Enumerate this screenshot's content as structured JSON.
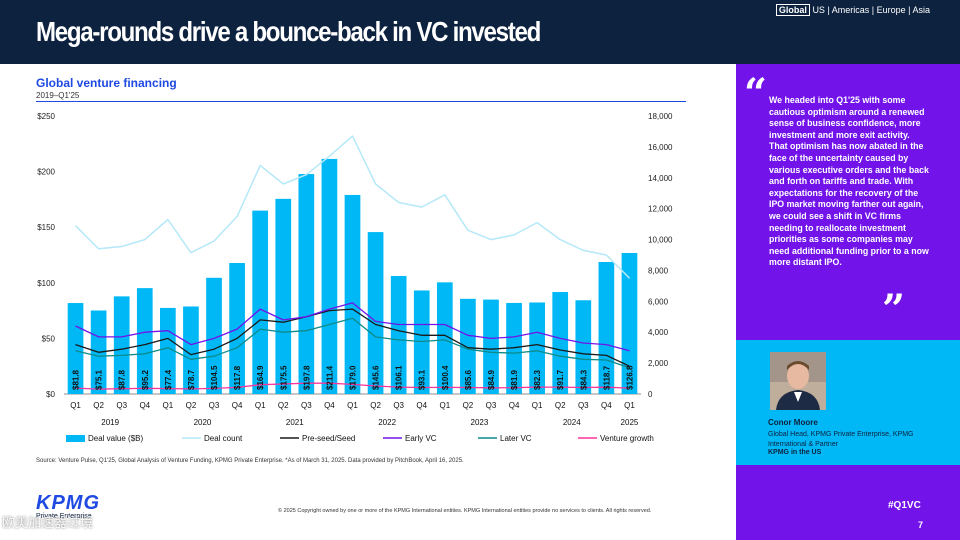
{
  "header": {
    "title": "Mega-rounds drive a bounce-back in VC invested",
    "region_active": "Global",
    "region_rest": "US | Americas | Europe | Asia"
  },
  "chart_header": {
    "title": "Global venture financing",
    "subtitle": "2019–Q1'25"
  },
  "chart_data": {
    "type": "bar",
    "title": "Global venture financing",
    "subtitle": "2019–Q1'25",
    "categories": [
      "Q1",
      "Q2",
      "Q3",
      "Q4",
      "Q1",
      "Q2",
      "Q3",
      "Q4",
      "Q1",
      "Q2",
      "Q3",
      "Q4",
      "Q1",
      "Q2",
      "Q3",
      "Q4",
      "Q1",
      "Q2",
      "Q3",
      "Q4",
      "Q1",
      "Q2",
      "Q3",
      "Q4",
      "Q1"
    ],
    "years": [
      {
        "label": "2019",
        "start": 0,
        "end": 3
      },
      {
        "label": "2020",
        "start": 4,
        "end": 7
      },
      {
        "label": "2021",
        "start": 8,
        "end": 11
      },
      {
        "label": "2022",
        "start": 12,
        "end": 15
      },
      {
        "label": "2023",
        "start": 16,
        "end": 19
      },
      {
        "label": "2024",
        "start": 20,
        "end": 23
      },
      {
        "label": "2025",
        "start": 24,
        "end": 24
      }
    ],
    "bars": {
      "name": "Deal value ($B)",
      "color": "#00b8f5",
      "values": [
        81.8,
        75.1,
        87.8,
        95.2,
        77.4,
        78.7,
        104.5,
        117.8,
        164.9,
        175.5,
        197.8,
        211.4,
        179.0,
        145.6,
        106.1,
        93.1,
        100.4,
        85.6,
        84.9,
        81.9,
        82.3,
        91.7,
        84.3,
        118.7,
        126.8
      ],
      "labels": [
        "$81.8",
        "$75.1",
        "$87.8",
        "$95.2",
        "$77.4",
        "$78.7",
        "$104.5",
        "$117.8",
        "$164.9",
        "$175.5",
        "$197.8",
        "$211.4",
        "$179.0",
        "$145.6",
        "$106.1",
        "$93.1",
        "$100.4",
        "$85.6",
        "$84.9",
        "$81.9",
        "$82.3",
        "$91.7",
        "$84.3",
        "$118.7",
        "$126.8"
      ]
    },
    "left_axis": {
      "min": 0,
      "max": 250,
      "step": 50,
      "ticks": [
        "$0",
        "$50",
        "$100",
        "$150",
        "$200",
        "$250"
      ]
    },
    "right_axis": {
      "min": 0,
      "max": 18000,
      "step": 2000,
      "ticks": [
        "0",
        "2,000",
        "4,000",
        "6,000",
        "8,000",
        "10,000",
        "12,000",
        "14,000",
        "16,000",
        "18,000"
      ]
    },
    "lines": [
      {
        "name": "Deal count",
        "color": "#b5e8f8",
        "width": 1.5,
        "values": [
          10900,
          9400,
          9550,
          10000,
          11300,
          9150,
          9900,
          11500,
          14800,
          13600,
          14200,
          15400,
          16700,
          13600,
          12400,
          12100,
          12900,
          10600,
          10000,
          10300,
          11100,
          10000,
          9300,
          9000,
          7500
        ]
      },
      {
        "name": "Pre-seed/Seed",
        "color": "#1a1a1a",
        "width": 1.3,
        "values": [
          3200,
          2700,
          2900,
          3200,
          3600,
          2550,
          2900,
          3600,
          4800,
          4650,
          5000,
          5400,
          5500,
          4500,
          4100,
          3800,
          3800,
          3000,
          2900,
          3000,
          3200,
          2850,
          2600,
          2500,
          1800
        ]
      },
      {
        "name": "Early VC",
        "color": "#7213ea",
        "width": 1.3,
        "values": [
          4400,
          3700,
          3700,
          4000,
          4100,
          3200,
          3600,
          4200,
          5500,
          4800,
          5000,
          5500,
          5900,
          4700,
          4500,
          4500,
          4500,
          3800,
          3600,
          3700,
          4000,
          3600,
          3300,
          3200,
          2800
        ]
      },
      {
        "name": "Later VC",
        "color": "#0d8a8a",
        "width": 1.3,
        "values": [
          2800,
          2450,
          2500,
          2600,
          3000,
          2250,
          2450,
          3000,
          4200,
          4000,
          4100,
          4500,
          4900,
          3700,
          3500,
          3400,
          3500,
          2900,
          2700,
          2650,
          2800,
          2450,
          2250,
          2200,
          1700
        ]
      },
      {
        "name": "Venture growth",
        "color": "#fd349c",
        "width": 1.3,
        "values": [
          380,
          320,
          340,
          370,
          350,
          330,
          360,
          430,
          600,
          650,
          700,
          700,
          620,
          520,
          450,
          420,
          430,
          420,
          400,
          410,
          450,
          450,
          420,
          440,
          380
        ]
      }
    ],
    "legend": [
      {
        "name": "Deal value ($B)",
        "kind": "bar",
        "color": "#00b8f5"
      },
      {
        "name": "Deal count",
        "kind": "line",
        "color": "#b5e8f8"
      },
      {
        "name": "Pre-seed/Seed",
        "kind": "line",
        "color": "#1a1a1a"
      },
      {
        "name": "Early VC",
        "kind": "line",
        "color": "#7213ea"
      },
      {
        "name": "Later VC",
        "kind": "line",
        "color": "#0d8a8a"
      },
      {
        "name": "Venture growth",
        "kind": "line",
        "color": "#fd349c"
      }
    ],
    "legend_position": "bottom"
  },
  "footer": {
    "source": "Source: Venture Pulse, Q1'25, Global Analysis of Venture Funding, KPMG Private Enterprise. *As of March 31, 2025. Data provided by PitchBook, April 16, 2025.",
    "copyright": "© 2025 Copyright owned by one or more of the KPMG International entities. KPMG International entities provide no services to clients. All rights reserved.",
    "logo_word": "KPMG",
    "logo_sub": "Private Enterprise",
    "watermark": "欧美加速器过境"
  },
  "quote": {
    "text": "We headed into Q1'25 with some cautious optimism around a renewed sense of business confidence, more investment and more exit activity. That optimism has now abated in the face of the uncertainty caused by various executive orders and the back and forth on tariffs and trade. With expectations for the recovery of the IPO market moving farther out again, we could see a shift in VC firms needing to reallocate investment priorities as some companies may need additional funding prior to a now more distant IPO.",
    "open_mark": "“",
    "close_mark": "”"
  },
  "person": {
    "name": "Conor Moore",
    "role": "Global Head, KPMG Private Enterprise, KPMG International & Partner",
    "firm": "KPMG in the US"
  },
  "side": {
    "hashtag": "#Q1VC",
    "page_number": "7"
  }
}
